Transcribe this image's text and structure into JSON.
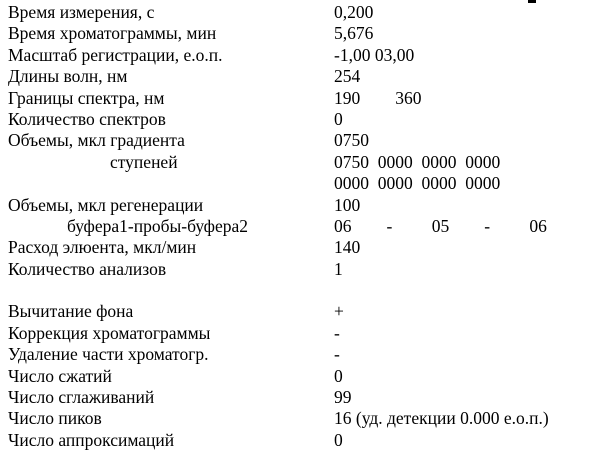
{
  "page": {
    "background_color": "#ffffff",
    "text_color": "#000000"
  },
  "report": {
    "rows": [
      {
        "label": "Время измерения, с",
        "value": "0,200"
      },
      {
        "label": "Время хроматограммы, мин",
        "value": "5,676"
      },
      {
        "label": "Масштаб регистрации, е.о.п.",
        "value": "-1,00 03,00"
      },
      {
        "label": "Длины волн, нм",
        "value": "254"
      },
      {
        "label": "Границы спектра, нм",
        "value": "190        360"
      },
      {
        "label": "Количество спектров",
        "value": "0"
      },
      {
        "label": "Объемы, мкл градиента",
        "value": "0750"
      },
      {
        "label": "ступеней",
        "value": "0750  0000  0000  0000"
      },
      {
        "label": "",
        "value": "0000  0000  0000  0000"
      },
      {
        "label": "Объемы, мкл регенерации",
        "value": "100"
      },
      {
        "label": "буфера1-пробы-буфера2",
        "value": "06        -         05        -         06"
      },
      {
        "label": "Расход элюента, мкл/мин",
        "value": "140"
      },
      {
        "label": "Количество анализов",
        "value": "1"
      },
      {
        "label": "",
        "value": ""
      },
      {
        "label": "Вычитание фона",
        "value": "+"
      },
      {
        "label": "Коррекция хроматограммы",
        "value": "-"
      },
      {
        "label": "Удаление части хроматогр.",
        "value": "-"
      },
      {
        "label": "Число сжатий",
        "value": "0"
      },
      {
        "label": "Число сглаживаний",
        "value": "99"
      },
      {
        "label": "Число пиков",
        "value": "16 (уд. детекции 0.000 е.о.п.)"
      },
      {
        "label": "Число аппроксимаций",
        "value": "0"
      }
    ]
  }
}
